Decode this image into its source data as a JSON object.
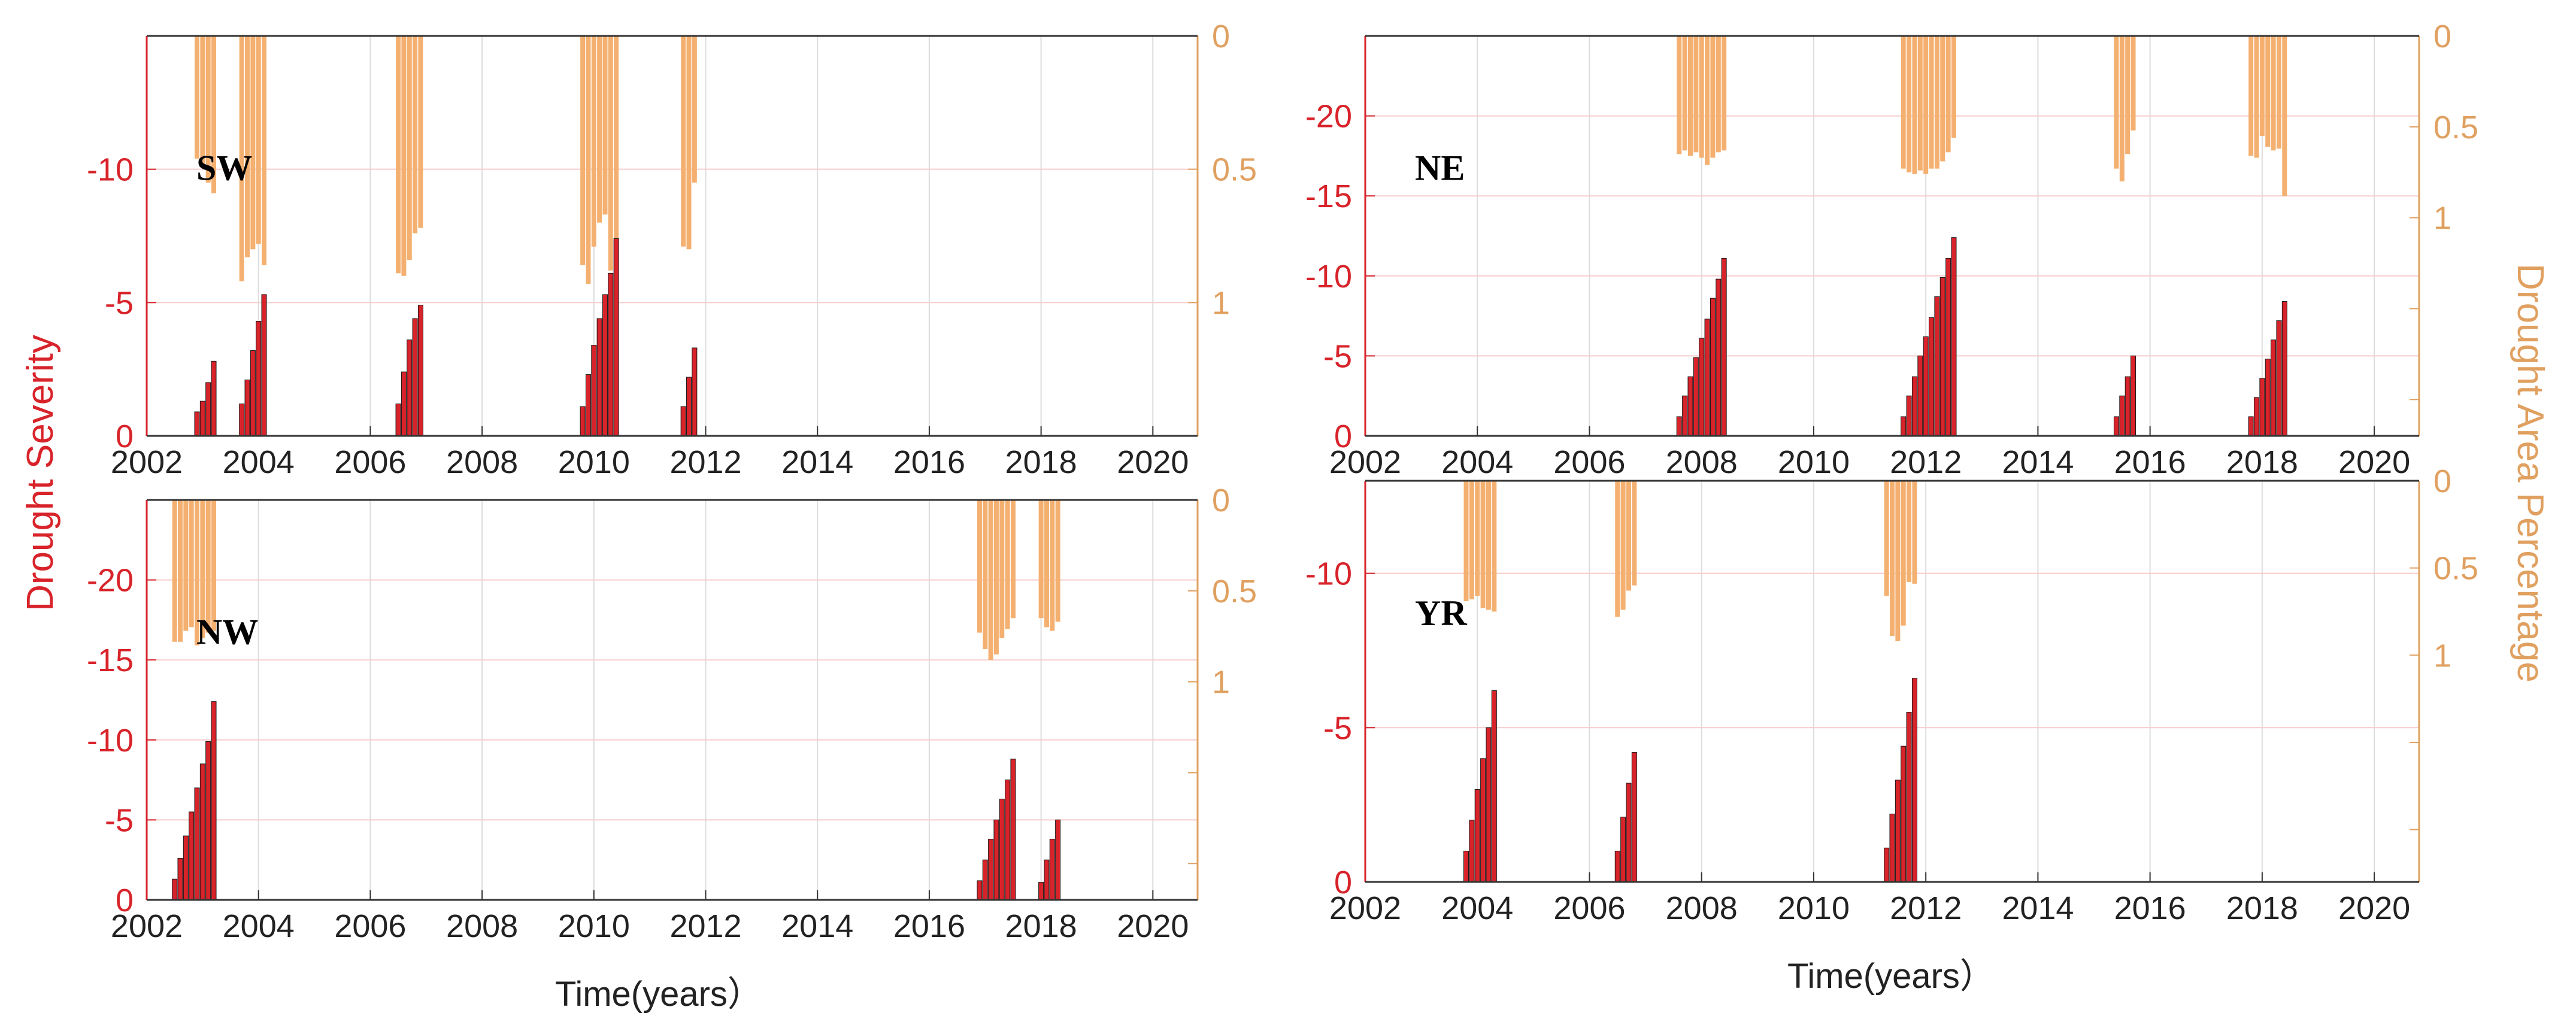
{
  "chart_data": [
    {
      "type": "bar",
      "region": "SW",
      "x_ticks": [
        "2002",
        "2004",
        "2006",
        "2008",
        "2010",
        "2012",
        "2014",
        "2016",
        "2018",
        "2020"
      ],
      "xlim": [
        2002,
        2020.8
      ],
      "severity_ylim": [
        -15,
        0
      ],
      "severity_ticks": [
        {
          "value": 0,
          "label": "0"
        },
        {
          "value": -5,
          "label": "-5"
        },
        {
          "value": -10,
          "label": "-10"
        }
      ],
      "area_ylim": [
        1.5,
        0
      ],
      "area_ticks": [
        {
          "value": 0,
          "label": "0"
        },
        {
          "value": 0.5,
          "label": "0.5"
        },
        {
          "value": 1,
          "label": "1"
        }
      ],
      "severity_events": [
        {
          "x": [
            2002.9,
            2003.0,
            2003.1,
            2003.2
          ],
          "values": [
            -0.9,
            -1.3,
            -2.0,
            -2.8
          ]
        },
        {
          "x": [
            2003.7,
            2003.8,
            2003.9,
            2004.0,
            2004.1
          ],
          "values": [
            -1.2,
            -2.1,
            -3.2,
            -4.3,
            -5.3
          ]
        },
        {
          "x": [
            2006.5,
            2006.6,
            2006.7,
            2006.8,
            2006.9
          ],
          "values": [
            -1.2,
            -2.4,
            -3.6,
            -4.4,
            -4.9
          ]
        },
        {
          "x": [
            2009.8,
            2009.9,
            2010.0,
            2010.1,
            2010.2,
            2010.3,
            2010.4
          ],
          "values": [
            -1.1,
            -2.3,
            -3.4,
            -4.4,
            -5.3,
            -6.1,
            -7.4
          ]
        },
        {
          "x": [
            2011.6,
            2011.7,
            2011.8
          ],
          "values": [
            -1.1,
            -2.2,
            -3.3
          ]
        }
      ],
      "area_events": [
        {
          "x": [
            2002.9,
            2003.0,
            2003.1,
            2003.2
          ],
          "values": [
            0.46,
            0.48,
            0.55,
            0.59
          ]
        },
        {
          "x": [
            2003.7,
            2003.8,
            2003.9,
            2004.0,
            2004.1
          ],
          "values": [
            0.92,
            0.83,
            0.8,
            0.78,
            0.86
          ]
        },
        {
          "x": [
            2006.5,
            2006.6,
            2006.7,
            2006.8,
            2006.9
          ],
          "values": [
            0.89,
            0.9,
            0.84,
            0.74,
            0.72
          ]
        },
        {
          "x": [
            2009.8,
            2009.9,
            2010.0,
            2010.1,
            2010.2,
            2010.3,
            2010.4
          ],
          "values": [
            0.86,
            0.93,
            0.79,
            0.7,
            0.67,
            0.88,
            0.88
          ]
        },
        {
          "x": [
            2011.6,
            2011.7,
            2011.8
          ],
          "values": [
            0.79,
            0.8,
            0.55
          ]
        }
      ]
    },
    {
      "type": "bar",
      "region": "NE",
      "x_ticks": [
        "2002",
        "2004",
        "2006",
        "2008",
        "2010",
        "2012",
        "2014",
        "2016",
        "2018",
        "2020"
      ],
      "xlim": [
        2002,
        2020.8
      ],
      "severity_ylim": [
        -25,
        0
      ],
      "severity_ticks": [
        {
          "value": 0,
          "label": "0"
        },
        {
          "value": -5,
          "label": "-5"
        },
        {
          "value": -10,
          "label": "-10"
        },
        {
          "value": -15,
          "label": "-15"
        },
        {
          "value": -20,
          "label": "-20"
        }
      ],
      "area_ylim": [
        2.2,
        0
      ],
      "area_ticks": [
        {
          "value": 0,
          "label": "0"
        },
        {
          "value": 0.5,
          "label": "0.5"
        },
        {
          "value": 1,
          "label": "1"
        }
      ],
      "severity_events": [
        {
          "x": [
            2007.6,
            2007.7,
            2007.8,
            2007.9,
            2008.0,
            2008.1,
            2008.2,
            2008.3,
            2008.4
          ],
          "values": [
            -1.2,
            -2.5,
            -3.7,
            -4.9,
            -6.1,
            -7.3,
            -8.6,
            -9.8,
            -11.1
          ]
        },
        {
          "x": [
            2011.6,
            2011.7,
            2011.8,
            2011.9,
            2012.0,
            2012.1,
            2012.2,
            2012.3,
            2012.4,
            2012.5
          ],
          "values": [
            -1.2,
            -2.5,
            -3.7,
            -5.0,
            -6.2,
            -7.4,
            -8.7,
            -9.9,
            -11.1,
            -12.4
          ]
        },
        {
          "x": [
            2015.4,
            2015.5,
            2015.6,
            2015.7
          ],
          "values": [
            -1.2,
            -2.5,
            -3.7,
            -5.0
          ]
        },
        {
          "x": [
            2017.8,
            2017.9,
            2018.0,
            2018.1,
            2018.2,
            2018.3,
            2018.4
          ],
          "values": [
            -1.2,
            -2.4,
            -3.6,
            -4.8,
            -6.0,
            -7.2,
            -8.4
          ]
        }
      ],
      "area_events": [
        {
          "x": [
            2007.6,
            2007.7,
            2007.8,
            2007.9,
            2008.0,
            2008.1,
            2008.2,
            2008.3,
            2008.4
          ],
          "values": [
            0.65,
            0.63,
            0.66,
            0.64,
            0.67,
            0.71,
            0.67,
            0.64,
            0.63
          ]
        },
        {
          "x": [
            2011.6,
            2011.7,
            2011.8,
            2011.9,
            2012.0,
            2012.1,
            2012.2,
            2012.3,
            2012.4,
            2012.5
          ],
          "values": [
            0.73,
            0.75,
            0.76,
            0.74,
            0.76,
            0.73,
            0.73,
            0.69,
            0.64,
            0.56
          ]
        },
        {
          "x": [
            2015.4,
            2015.5,
            2015.6,
            2015.7
          ],
          "values": [
            0.73,
            0.8,
            0.65,
            0.52
          ]
        },
        {
          "x": [
            2017.8,
            2017.9,
            2018.0,
            2018.1,
            2018.2,
            2018.3,
            2018.4
          ],
          "values": [
            0.66,
            0.67,
            0.55,
            0.61,
            0.63,
            0.62,
            0.88
          ]
        }
      ]
    },
    {
      "type": "bar",
      "region": "NW",
      "x_ticks": [
        "2002",
        "2004",
        "2006",
        "2008",
        "2010",
        "2012",
        "2014",
        "2016",
        "2018",
        "2020"
      ],
      "xlim": [
        2002,
        2020.8
      ],
      "severity_ylim": [
        -25,
        0
      ],
      "severity_ticks": [
        {
          "value": 0,
          "label": "0"
        },
        {
          "value": -5,
          "label": "-5"
        },
        {
          "value": -10,
          "label": "-10"
        },
        {
          "value": -15,
          "label": "-15"
        },
        {
          "value": -20,
          "label": "-20"
        }
      ],
      "area_ylim": [
        2.2,
        0
      ],
      "area_ticks": [
        {
          "value": 0,
          "label": "0"
        },
        {
          "value": 0.5,
          "label": "0.5"
        },
        {
          "value": 1,
          "label": "1"
        }
      ],
      "severity_events": [
        {
          "x": [
            2002.5,
            2002.6,
            2002.7,
            2002.8,
            2002.9,
            2003.0,
            2003.1,
            2003.2
          ],
          "values": [
            -1.3,
            -2.6,
            -4.0,
            -5.5,
            -7.0,
            -8.5,
            -9.9,
            -12.4
          ]
        },
        {
          "x": [
            2016.9,
            2017.0,
            2017.1,
            2017.2,
            2017.3,
            2017.4,
            2017.5
          ],
          "values": [
            -1.2,
            -2.5,
            -3.8,
            -5.0,
            -6.3,
            -7.5,
            -8.8
          ]
        },
        {
          "x": [
            2018.0,
            2018.1,
            2018.2,
            2018.3
          ],
          "values": [
            -1.1,
            -2.5,
            -3.8,
            -5.0
          ]
        }
      ],
      "area_events": [
        {
          "x": [
            2002.5,
            2002.6,
            2002.7,
            2002.8,
            2002.9,
            2003.0,
            2003.1,
            2003.2
          ],
          "values": [
            0.78,
            0.78,
            0.72,
            0.7,
            0.8,
            0.76,
            0.73,
            0.72
          ]
        },
        {
          "x": [
            2016.9,
            2017.0,
            2017.1,
            2017.2,
            2017.3,
            2017.4,
            2017.5
          ],
          "values": [
            0.73,
            0.82,
            0.88,
            0.85,
            0.76,
            0.71,
            0.65
          ]
        },
        {
          "x": [
            2018.0,
            2018.1,
            2018.2,
            2018.3
          ],
          "values": [
            0.65,
            0.7,
            0.72,
            0.67
          ]
        }
      ]
    },
    {
      "type": "bar",
      "region": "YR",
      "x_ticks": [
        "2002",
        "2004",
        "2006",
        "2008",
        "2010",
        "2012",
        "2014",
        "2016",
        "2018",
        "2020"
      ],
      "xlim": [
        2002,
        2020.8
      ],
      "severity_ylim": [
        -13,
        0
      ],
      "severity_ticks": [
        {
          "value": 0,
          "label": "0"
        },
        {
          "value": -5,
          "label": "-5"
        },
        {
          "value": -10,
          "label": "-10"
        }
      ],
      "area_ylim": [
        2.3,
        0
      ],
      "area_ticks": [
        {
          "value": 0,
          "label": "0"
        },
        {
          "value": 0.5,
          "label": "0.5"
        },
        {
          "value": 1,
          "label": "1"
        }
      ],
      "severity_events": [
        {
          "x": [
            2003.8,
            2003.9,
            2004.0,
            2004.1,
            2004.2,
            2004.3
          ],
          "values": [
            -1.0,
            -2.0,
            -3.0,
            -4.0,
            -5.0,
            -6.2
          ]
        },
        {
          "x": [
            2006.5,
            2006.6,
            2006.7,
            2006.8
          ],
          "values": [
            -1.0,
            -2.1,
            -3.2,
            -4.2
          ]
        },
        {
          "x": [
            2011.3,
            2011.4,
            2011.5,
            2011.6,
            2011.7,
            2011.8
          ],
          "values": [
            -1.1,
            -2.2,
            -3.3,
            -4.4,
            -5.5,
            -6.6
          ]
        }
      ],
      "area_events": [
        {
          "x": [
            2003.8,
            2003.9,
            2004.0,
            2004.1,
            2004.2,
            2004.3
          ],
          "values": [
            0.69,
            0.68,
            0.66,
            0.73,
            0.74,
            0.75
          ]
        },
        {
          "x": [
            2006.5,
            2006.6,
            2006.7,
            2006.8
          ],
          "values": [
            0.78,
            0.74,
            0.63,
            0.6
          ]
        },
        {
          "x": [
            2011.3,
            2011.4,
            2011.5,
            2011.6,
            2011.7,
            2011.8
          ],
          "values": [
            0.66,
            0.89,
            0.92,
            0.83,
            0.58,
            0.59
          ]
        }
      ]
    }
  ],
  "labels": {
    "y_left": "Drought Severity",
    "y_right": "Drought Area Percentage",
    "x_left": "Time(years）",
    "x_right": "Time(years）"
  },
  "colors": {
    "severity": "#d8232a",
    "severity_edge": "#1a1a1a",
    "area": "#f4b070",
    "area_text": "#e0a060",
    "grid": "#dcdcdc",
    "grid_red": "#f6cccc",
    "axis": "#333333"
  }
}
